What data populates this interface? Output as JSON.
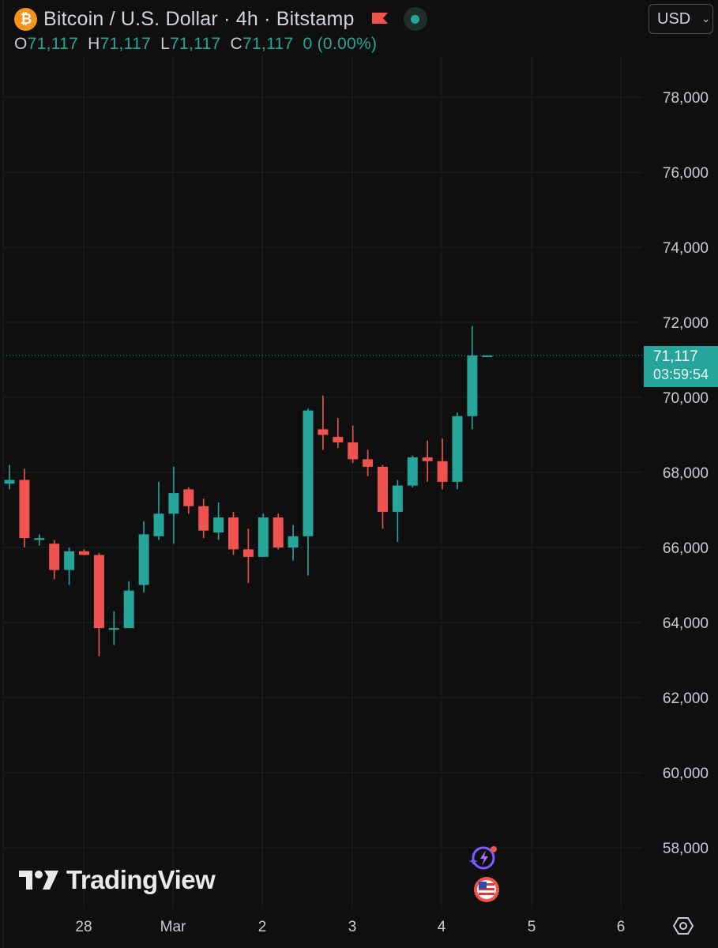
{
  "header": {
    "symbol_title": "Bitcoin / U.S. Dollar · 4h · Bitstamp",
    "logo_icon": "bitcoin-logo-icon",
    "flag_icon": "red-flag-icon",
    "status_icon": "market-open-dot-icon",
    "currency": "USD"
  },
  "ohlc": {
    "o_label": "O",
    "o_value": "71,117",
    "h_label": "H",
    "h_value": "71,117",
    "l_label": "L",
    "l_value": "71,117",
    "c_label": "C",
    "c_value": "71,117",
    "change": "0 (0.00%)"
  },
  "price_badge": {
    "price": "71,117",
    "countdown": "03:59:54"
  },
  "branding": {
    "wordmark": "TradingView"
  },
  "colors": {
    "background": "#0f0f0f",
    "up": "#26a69a",
    "down": "#ef5350",
    "grid": "#1e1f22",
    "text": "#d1d4dc"
  },
  "event_icons": [
    "ai-spark-icon",
    "us-flag-economic-event-icon"
  ],
  "settings_icon": "chart-settings-icon",
  "chart_data": {
    "type": "candlestick",
    "symbol": "Bitcoin / U.S. Dollar",
    "interval": "4h",
    "exchange": "Bitstamp",
    "y_ticks": [
      "78,000",
      "76,000",
      "74,000",
      "72,000",
      "70,000",
      "68,000",
      "66,000",
      "64,000",
      "62,000",
      "60,000",
      "58,000"
    ],
    "y_tick_values": [
      78000,
      76000,
      74000,
      72000,
      70000,
      68000,
      66000,
      64000,
      62000,
      60000,
      58000
    ],
    "x_ticks": [
      "28",
      "Mar",
      "2",
      "3",
      "4",
      "5",
      "6"
    ],
    "last_price": 71117,
    "candles": [
      {
        "o": 67700,
        "h": 68200,
        "l": 67550,
        "c": 67800
      },
      {
        "o": 67800,
        "h": 68100,
        "l": 66000,
        "c": 66250
      },
      {
        "o": 66200,
        "h": 66350,
        "l": 66050,
        "c": 66250
      },
      {
        "o": 66100,
        "h": 66200,
        "l": 65150,
        "c": 65400
      },
      {
        "o": 65400,
        "h": 66000,
        "l": 65000,
        "c": 65900
      },
      {
        "o": 65900,
        "h": 65950,
        "l": 65800,
        "c": 65800
      },
      {
        "o": 65800,
        "h": 65850,
        "l": 63100,
        "c": 63850
      },
      {
        "o": 63850,
        "h": 64300,
        "l": 63400,
        "c": 63850
      },
      {
        "o": 63850,
        "h": 65100,
        "l": 63850,
        "c": 64850
      },
      {
        "o": 65000,
        "h": 66700,
        "l": 64800,
        "c": 66350
      },
      {
        "o": 66300,
        "h": 67750,
        "l": 66200,
        "c": 66900
      },
      {
        "o": 66900,
        "h": 68150,
        "l": 66100,
        "c": 67450
      },
      {
        "o": 67550,
        "h": 67600,
        "l": 66900,
        "c": 67100
      },
      {
        "o": 67100,
        "h": 67300,
        "l": 66250,
        "c": 66450
      },
      {
        "o": 66400,
        "h": 67200,
        "l": 66200,
        "c": 66800
      },
      {
        "o": 66800,
        "h": 66950,
        "l": 65800,
        "c": 65950
      },
      {
        "o": 65950,
        "h": 66500,
        "l": 65050,
        "c": 65750
      },
      {
        "o": 65750,
        "h": 66900,
        "l": 65750,
        "c": 66800
      },
      {
        "o": 66800,
        "h": 66900,
        "l": 65950,
        "c": 66000
      },
      {
        "o": 66000,
        "h": 66600,
        "l": 65650,
        "c": 66300
      },
      {
        "o": 66300,
        "h": 69700,
        "l": 65250,
        "c": 69650
      },
      {
        "o": 69150,
        "h": 70050,
        "l": 68600,
        "c": 69000
      },
      {
        "o": 68950,
        "h": 69450,
        "l": 68650,
        "c": 68800
      },
      {
        "o": 68800,
        "h": 69250,
        "l": 68250,
        "c": 68350
      },
      {
        "o": 68350,
        "h": 68600,
        "l": 67900,
        "c": 68150
      },
      {
        "o": 68150,
        "h": 68200,
        "l": 66500,
        "c": 66950
      },
      {
        "o": 66950,
        "h": 67800,
        "l": 66150,
        "c": 67650
      },
      {
        "o": 67650,
        "h": 68450,
        "l": 67600,
        "c": 68400
      },
      {
        "o": 68400,
        "h": 68850,
        "l": 67750,
        "c": 68300
      },
      {
        "o": 68300,
        "h": 68900,
        "l": 67550,
        "c": 67750
      },
      {
        "o": 67750,
        "h": 69600,
        "l": 67550,
        "c": 69500
      },
      {
        "o": 69500,
        "h": 71900,
        "l": 69150,
        "c": 71117
      },
      {
        "o": 71117,
        "h": 71117,
        "l": 71117,
        "c": 71117
      }
    ]
  }
}
